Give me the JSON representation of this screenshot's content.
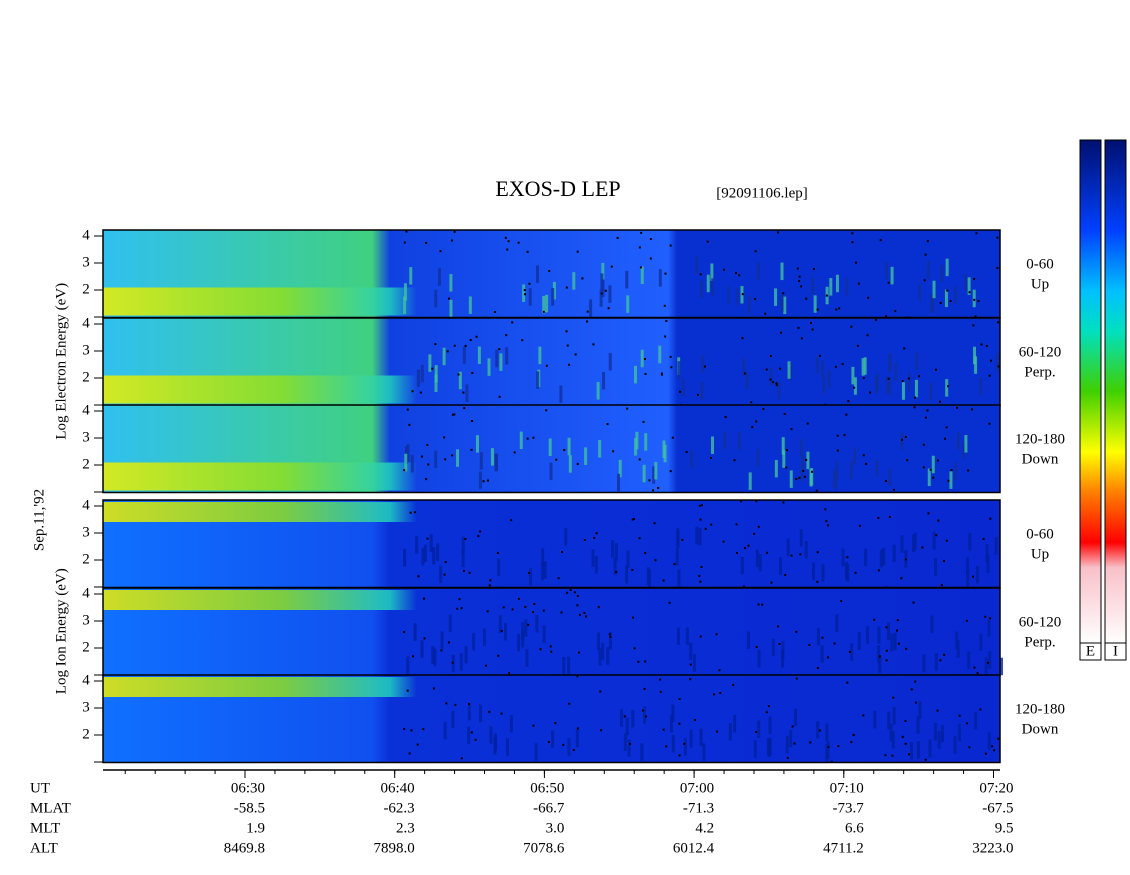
{
  "header": {
    "title": "EXOS-D LEP",
    "file": "[92091106.lep]"
  },
  "date_label": "Sep.11,'92",
  "groups": [
    {
      "axis_label": "Log Electron Energy (eV)",
      "panels": [
        {
          "tick_labels": [
            "4",
            "3",
            "2"
          ],
          "range": "0-60",
          "direction": "Up"
        },
        {
          "tick_labels": [
            "4",
            "3",
            "2"
          ],
          "range": "60-120",
          "direction": "Perp."
        },
        {
          "tick_labels": [
            "4",
            "3",
            "2"
          ],
          "range": "120-180",
          "direction": "Down"
        }
      ]
    },
    {
      "axis_label": "Log Ion Energy (eV)",
      "panels": [
        {
          "tick_labels": [
            "4",
            "3",
            "2"
          ],
          "range": "0-60",
          "direction": "Up"
        },
        {
          "tick_labels": [
            "4",
            "3",
            "2"
          ],
          "range": "60-120",
          "direction": "Perp."
        },
        {
          "tick_labels": [
            "4",
            "3",
            "2"
          ],
          "range": "120-180",
          "direction": "Down"
        }
      ]
    }
  ],
  "time_axis": [
    "06:30",
    "06:40",
    "06:50",
    "07:00",
    "07:10",
    "07:20"
  ],
  "ephemeris": [
    {
      "label": "UT",
      "values": []
    },
    {
      "label": "MLAT",
      "values": [
        "-58.5",
        "-62.3",
        "-66.7",
        "-71.3",
        "-73.7",
        "-67.5"
      ]
    },
    {
      "label": "MLT",
      "values": [
        "1.9",
        "2.3",
        "3.0",
        "4.2",
        "6.6",
        "9.5"
      ]
    },
    {
      "label": "ALT",
      "values": [
        "8469.8",
        "7898.0",
        "7078.6",
        "6012.4",
        "4711.2",
        "3223.0"
      ]
    }
  ],
  "colorbars": [
    "E",
    "I"
  ]
}
